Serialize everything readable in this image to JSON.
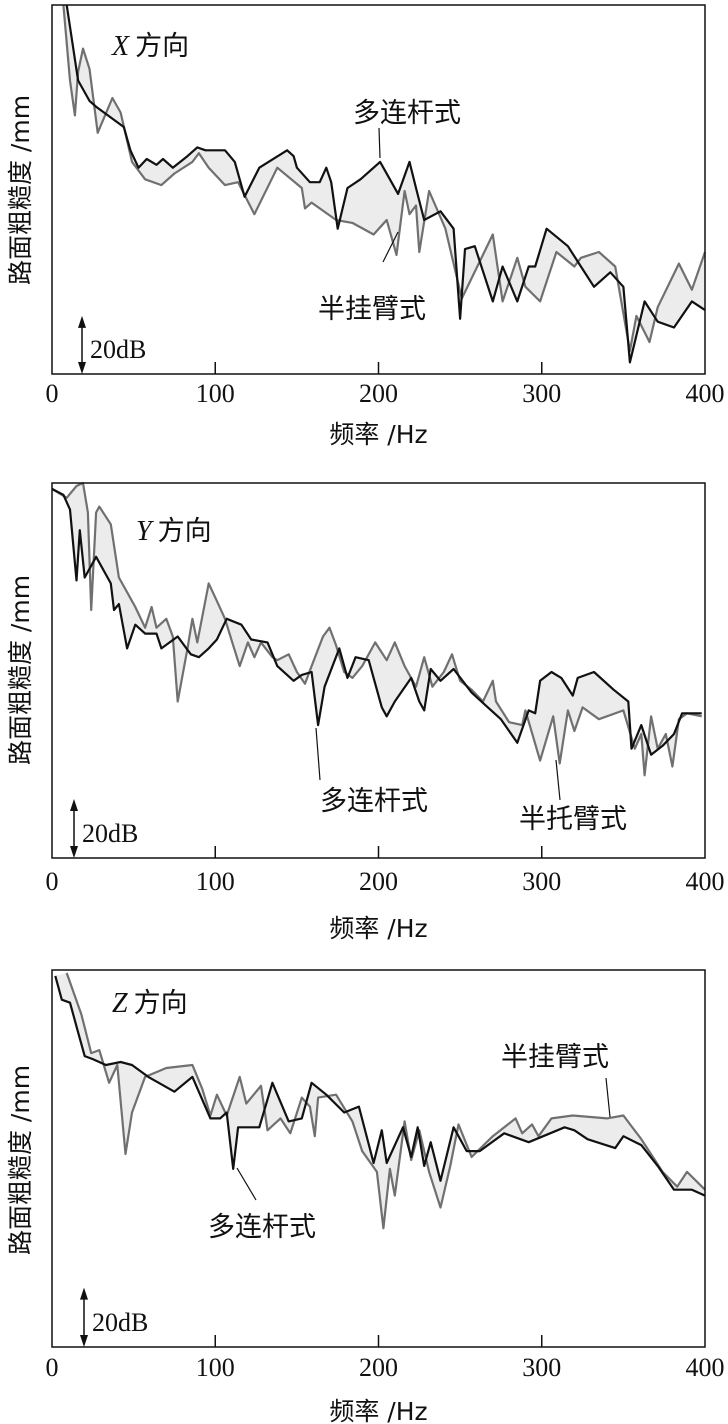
{
  "chart_data": [
    {
      "type": "line",
      "panel_label": {
        "letter": "X",
        "text": "方向"
      },
      "xlabel": "频率 /Hz",
      "ylabel": "路面粗糙度 /mm",
      "xlim": [
        0,
        400
      ],
      "xticks": [
        0,
        100,
        200,
        300,
        400
      ],
      "xtick_labels": [
        "0",
        "100",
        "200",
        "300",
        "400"
      ],
      "ylim": [
        0,
        127
      ],
      "y_unit": "dB",
      "scale_bar": {
        "label": "20dB",
        "value": 20
      },
      "grid": false,
      "fill_between_series": true,
      "series": [
        {
          "name": "多连杆式",
          "color": "#111111",
          "x": [
            9,
            16,
            23,
            27,
            44,
            48,
            53,
            58,
            64,
            68,
            74,
            83,
            89,
            94,
            106,
            112,
            118,
            127,
            144,
            148,
            150,
            158,
            164,
            168,
            171,
            175,
            181,
            189,
            201,
            212,
            219,
            223,
            228,
            238,
            246,
            250,
            253,
            259,
            270,
            276,
            285,
            292,
            296,
            303,
            316,
            324,
            332,
            342,
            350,
            354,
            363,
            371,
            381,
            392,
            400
          ],
          "y": [
            127,
            101,
            94,
            92,
            85,
            77,
            71,
            74,
            72,
            74,
            71,
            75,
            78,
            77,
            77,
            73,
            61,
            71,
            77,
            75,
            71,
            66,
            66,
            71,
            66,
            50,
            64,
            67,
            73,
            62,
            73,
            64,
            53,
            56,
            50,
            19,
            43,
            44,
            25,
            37,
            25,
            37,
            37,
            50,
            44,
            37,
            30,
            35,
            30,
            4,
            25,
            18,
            16,
            25,
            22
          ]
        },
        {
          "name": "半挂臂式",
          "color": "#707070",
          "x": [
            7,
            11,
            14,
            16,
            19,
            23,
            28,
            37,
            42,
            49,
            57,
            67,
            75,
            86,
            90,
            96,
            106,
            114,
            124,
            138,
            153,
            155,
            159,
            174,
            184,
            197,
            205,
            211,
            216,
            219,
            223,
            225,
            231,
            241,
            251,
            270,
            276,
            285,
            290,
            299,
            309,
            320,
            324,
            335,
            345,
            354,
            358,
            366,
            371,
            384,
            392,
            400
          ],
          "y": [
            127,
            101,
            89,
            104,
            112,
            105,
            83,
            95,
            90,
            73,
            67,
            65,
            69,
            73,
            76,
            71,
            65,
            66,
            55,
            71,
            64,
            57,
            59,
            53,
            52,
            48,
            53,
            41,
            63,
            55,
            58,
            42,
            63,
            50,
            26,
            48,
            25,
            40,
            30,
            25,
            42,
            37,
            40,
            42,
            37,
            8,
            20,
            11,
            23,
            38,
            29,
            42
          ]
        }
      ]
    },
    {
      "type": "line",
      "panel_label": {
        "letter": "Y",
        "text": "方向"
      },
      "xlabel": "频率 /Hz",
      "ylabel": "路面粗糙度 /mm",
      "xlim": [
        0,
        400
      ],
      "xticks": [
        0,
        100,
        200,
        300,
        400
      ],
      "xtick_labels": [
        "0",
        "100",
        "200",
        "300",
        "400"
      ],
      "ylim": [
        0,
        127
      ],
      "y_unit": "dB",
      "scale_bar": {
        "label": "20dB",
        "value": 20
      },
      "grid": false,
      "fill_between_series": true,
      "series": [
        {
          "name": "多连杆式",
          "color": "#111111",
          "x": [
            0,
            7,
            11,
            15,
            17,
            20,
            27,
            36,
            38,
            41,
            46,
            51,
            57,
            64,
            67,
            77,
            85,
            90,
            96,
            101,
            107,
            116,
            122,
            132,
            138,
            148,
            153,
            159,
            163,
            167,
            176,
            181,
            186,
            194,
            202,
            205,
            210,
            220,
            225,
            228,
            232,
            238,
            246,
            257,
            267,
            275,
            285,
            292,
            296,
            299,
            306,
            312,
            319,
            322,
            332,
            344,
            353,
            355,
            361,
            367,
            374,
            381,
            386,
            398
          ],
          "y": [
            125,
            123,
            118,
            94,
            111,
            95,
            102,
            93,
            84,
            86,
            71,
            79,
            76,
            76,
            71,
            75,
            69,
            68,
            71,
            74,
            81,
            79,
            74,
            73,
            65,
            60,
            62,
            63,
            45,
            58,
            71,
            61,
            68,
            67,
            51,
            48,
            53,
            61,
            53,
            50,
            64,
            60,
            64,
            56,
            51,
            47,
            39,
            50,
            49,
            60,
            63,
            61,
            55,
            61,
            63,
            57,
            53,
            37,
            45,
            35,
            38,
            42,
            49,
            49
          ]
        },
        {
          "name": "半托臂式",
          "color": "#707070",
          "x": [
            0,
            9,
            15,
            19,
            22,
            24,
            27,
            29,
            36,
            41,
            51,
            57,
            61,
            64,
            70,
            74,
            77,
            83,
            86,
            89,
            96,
            101,
            106,
            111,
            115,
            120,
            124,
            128,
            135,
            138,
            145,
            150,
            155,
            159,
            166,
            170,
            174,
            179,
            184,
            190,
            198,
            205,
            210,
            216,
            223,
            228,
            233,
            240,
            245,
            250,
            257,
            264,
            270,
            272,
            280,
            288,
            290,
            299,
            307,
            311,
            316,
            320,
            325,
            335,
            350,
            357,
            361,
            363,
            367,
            371,
            376,
            380,
            384,
            389,
            398
          ],
          "y": [
            125,
            122,
            126,
            127,
            117,
            84,
            117,
            119,
            113,
            95,
            85,
            78,
            85,
            78,
            81,
            75,
            53,
            71,
            81,
            73,
            93,
            87,
            81,
            72,
            65,
            73,
            68,
            73,
            68,
            67,
            69,
            63,
            59,
            65,
            75,
            78,
            72,
            63,
            61,
            65,
            73,
            67,
            73,
            65,
            58,
            68,
            58,
            63,
            69,
            60,
            57,
            53,
            60,
            53,
            46,
            45,
            50,
            33,
            48,
            32,
            50,
            43,
            51,
            47,
            50,
            37,
            42,
            28,
            48,
            37,
            42,
            31,
            47,
            49,
            48
          ]
        }
      ]
    },
    {
      "type": "line",
      "panel_label": {
        "letter": "Z",
        "text": "方向"
      },
      "xlabel": "频率 /Hz",
      "ylabel": "路面粗糙度 /mm",
      "xlim": [
        0,
        400
      ],
      "xticks": [
        0,
        100,
        200,
        300,
        400
      ],
      "xtick_labels": [
        "0",
        "100",
        "200",
        "300",
        "400"
      ],
      "ylim": [
        0,
        127
      ],
      "y_unit": "dB",
      "scale_bar": {
        "label": "20dB",
        "value": 20
      },
      "grid": false,
      "fill_between_series": true,
      "series": [
        {
          "name": "多连杆式",
          "color": "#111111",
          "x": [
            2,
            6,
            11,
            16,
            20,
            25,
            33,
            42,
            49,
            59,
            75,
            86,
            97,
            103,
            107,
            111,
            114,
            127,
            135,
            145,
            153,
            159,
            168,
            179,
            188,
            197,
            202,
            205,
            215,
            220,
            224,
            228,
            232,
            238,
            246,
            254,
            262,
            277,
            292,
            314,
            320,
            328,
            345,
            350,
            361,
            371,
            381,
            392,
            400
          ],
          "y": [
            125,
            117,
            116,
            106,
            98,
            97,
            95,
            96,
            95,
            91,
            86,
            91,
            77,
            77,
            79,
            60,
            74,
            74,
            89,
            76,
            77,
            89,
            85,
            79,
            81,
            62,
            73,
            62,
            74,
            64,
            74,
            61,
            69,
            56,
            74,
            66,
            66,
            72,
            69,
            74,
            73,
            70,
            67,
            71,
            68,
            61,
            53,
            53,
            51
          ]
        },
        {
          "name": "半挂臂式",
          "color": "#707070",
          "x": [
            9,
            18,
            24,
            29,
            35,
            40,
            45,
            49,
            57,
            70,
            86,
            92,
            97,
            101,
            107,
            115,
            119,
            128,
            132,
            140,
            146,
            153,
            158,
            161,
            163,
            174,
            184,
            190,
            199,
            203,
            207,
            210,
            216,
            220,
            225,
            231,
            238,
            244,
            249,
            257,
            270,
            284,
            288,
            294,
            298,
            306,
            319,
            340,
            350,
            361,
            374,
            383,
            389,
            400
          ],
          "y": [
            126,
            112,
            99,
            100,
            89,
            95,
            65,
            79,
            91,
            94,
            95,
            87,
            78,
            85,
            78,
            91,
            82,
            88,
            73,
            77,
            72,
            84,
            81,
            71,
            84,
            85,
            76,
            66,
            59,
            40,
            60,
            51,
            76,
            63,
            73,
            59,
            47,
            61,
            75,
            64,
            71,
            77,
            72,
            75,
            71,
            77,
            78,
            77,
            78,
            70,
            59,
            54,
            59,
            53
          ]
        }
      ]
    }
  ]
}
